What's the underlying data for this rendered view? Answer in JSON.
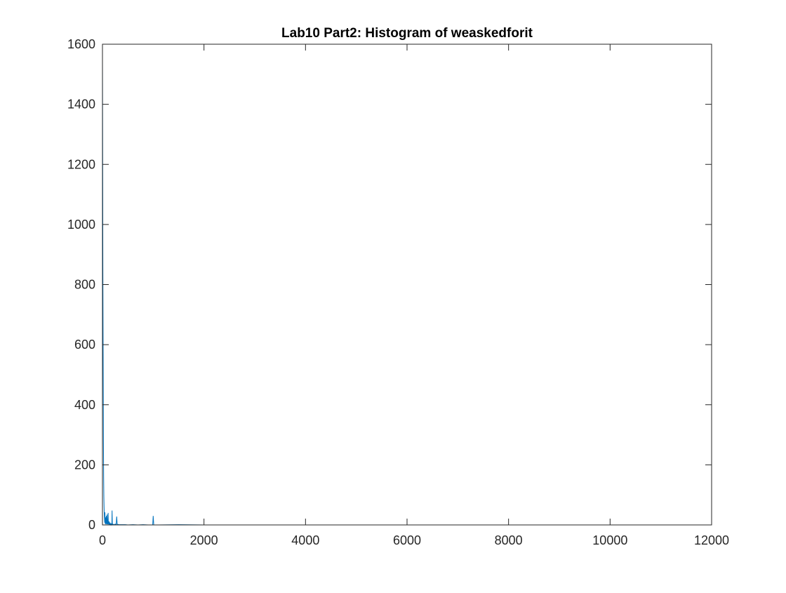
{
  "chart_data": {
    "type": "line",
    "title": "Lab10 Part2: Histogram of weaskedforit",
    "xlabel": "",
    "ylabel": "",
    "xlim": [
      0,
      12000
    ],
    "ylim": [
      0,
      1600
    ],
    "xticks": [
      0,
      2000,
      4000,
      6000,
      8000,
      10000,
      12000
    ],
    "yticks": [
      0,
      200,
      400,
      600,
      800,
      1000,
      1200,
      1400,
      1600
    ],
    "grid": false,
    "legend": "none",
    "color": "#0072BD",
    "series": [
      {
        "x": [
          0,
          4,
          8,
          12,
          16,
          20,
          24,
          28,
          32,
          36,
          40,
          44,
          48,
          52,
          56,
          60,
          64,
          68,
          72,
          76,
          80,
          84,
          88,
          92,
          96,
          100,
          104,
          108,
          112,
          116,
          120,
          125,
          130,
          135,
          140,
          145,
          150,
          155,
          160,
          165,
          170,
          175,
          180,
          185,
          190,
          195,
          200,
          210,
          220,
          230,
          240,
          250,
          260,
          270,
          280,
          290,
          300,
          320,
          340,
          360,
          380,
          400,
          450,
          500,
          600,
          700,
          800,
          900,
          990,
          1000,
          1010,
          1100,
          1500,
          2000,
          3000,
          4000,
          5000,
          6000,
          7000,
          8000,
          9000,
          10000,
          10400
        ],
        "y": [
          1550,
          1200,
          840,
          620,
          430,
          280,
          160,
          95,
          60,
          35,
          20,
          8,
          42,
          5,
          15,
          3,
          25,
          2,
          8,
          30,
          4,
          12,
          2,
          35,
          5,
          18,
          2,
          9,
          40,
          3,
          6,
          1,
          12,
          2,
          4,
          1,
          8,
          2,
          3,
          1,
          5,
          1,
          2,
          1,
          48,
          1,
          3,
          1,
          2,
          1,
          1,
          3,
          1,
          1,
          28,
          1,
          2,
          1,
          1,
          1,
          1,
          1,
          1,
          0,
          1,
          0,
          1,
          0,
          0,
          30,
          0,
          0,
          1,
          0,
          0,
          0,
          0,
          0,
          0,
          0,
          0,
          0,
          0
        ]
      }
    ]
  }
}
